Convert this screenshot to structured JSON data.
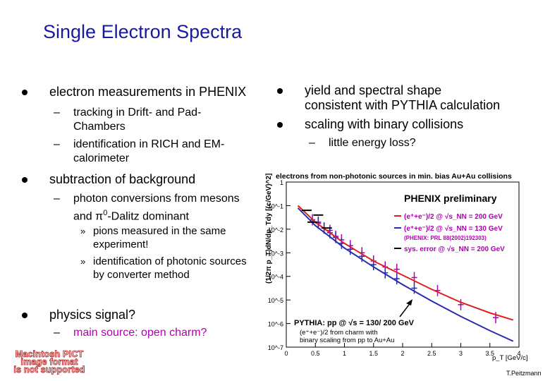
{
  "slide": {
    "title": "Single Electron Spectra",
    "credit": "T.Peitzmann"
  },
  "left": {
    "b1": "electron measurements in PHENIX",
    "b1_sub1_l1": "tracking in Drift- and Pad-",
    "b1_sub1_l2": "Chambers",
    "b1_sub2_l1": "identification in RICH and EM-",
    "b1_sub2_l2": "calorimeter",
    "b2": "subtraction of background",
    "b2_sub1_l1": "photon conversions from mesons",
    "b2_sub1_l2a": "and ",
    "b2_sub1_pi": "π",
    "b2_sub1_sup": "0",
    "b2_sub1_l2b": "-Dalitz dominant",
    "b2_s1_l1": "pions measured in the same",
    "b2_s1_l2": "experiment!",
    "b2_s2_l1": "identification of photonic sources",
    "b2_s2_l2": "by converter method",
    "b3": "physics signal?",
    "b3_sub1": "main source: open charm?",
    "dash": "–",
    "chev": "»"
  },
  "right": {
    "b1_l1": "yield and spectral shape",
    "b1_l2": "consistent with PYTHIA calculation",
    "b2": "scaling with binary collisions",
    "b2_sub": "little energy loss?",
    "dash": "–"
  },
  "pict_placeholder": {
    "l1": "Macintosh PICT",
    "l2": "image format",
    "l3": "is not supported"
  },
  "colors": {
    "title": "#1a1a9c",
    "magenta": "#b000b0",
    "red": "#e02020",
    "blue": "#2a2ab0"
  },
  "chart_data": {
    "type": "scatter",
    "title": "electrons from non-photonic sources in min. bias Au+Au collisions",
    "xlabel": "p_T [GeV/c]",
    "ylabel": "(1/2π p_T)dN/dp_Tdy [(c/GeV)^2]",
    "xlim": [
      0,
      4
    ],
    "ylim_log10": [
      -7,
      0
    ],
    "x_ticks": [
      "0",
      "0.5",
      "1",
      "1.5",
      "2",
      "2.5",
      "3",
      "3.5",
      "4"
    ],
    "y_ticks": [
      "10^-7",
      "10^-6",
      "10^-5",
      "10^-4",
      "10^-3",
      "10^-2",
      "10^-1",
      "1"
    ],
    "legend": {
      "header": "PHENIX preliminary",
      "e200": "(e⁺+e⁻)/2 @ √s_NN = 200 GeV",
      "e130": "(e⁺+e⁻)/2 @ √s_NN = 130 GeV",
      "ref": "(PHENIX: PRL 88(2002)192303)",
      "syserr": "sys. error @ √s_NN = 200 GeV"
    },
    "pythia": {
      "l1": "PYTHIA: pp @ √s = 130/ 200 GeV",
      "l2": "(e⁺+e⁻)/2 from charm with",
      "l3": "binary scaling from pp to Au+Au"
    },
    "series": [
      {
        "name": "(e⁺+e⁻)/2 @ √s_NN = 200 GeV",
        "x": [
          0.45,
          0.55,
          0.65,
          0.75,
          0.85,
          0.95,
          1.1,
          1.3,
          1.5,
          1.7,
          1.9,
          2.2,
          2.6,
          3.0,
          3.6
        ],
        "log10y": [
          -1.6,
          -1.75,
          -1.95,
          -2.05,
          -2.3,
          -2.45,
          -2.7,
          -3.0,
          -3.35,
          -3.6,
          -3.7,
          -4.05,
          -4.6,
          -5.2,
          -5.75
        ]
      },
      {
        "name": "(e⁺+e⁻)/2 @ √s_NN = 130 GeV",
        "x": [
          0.55,
          0.65,
          0.75,
          0.85,
          0.95,
          1.1,
          1.3,
          1.5,
          1.7,
          1.9,
          2.2
        ],
        "log10y": [
          -1.7,
          -1.95,
          -2.15,
          -2.35,
          -2.6,
          -2.85,
          -3.15,
          -3.5,
          -3.85,
          -4.1,
          -4.5
        ]
      },
      {
        "name": "PYTHIA 200 GeV",
        "x": [
          0.2,
          0.5,
          1.0,
          1.5,
          2.0,
          2.5,
          3.0,
          3.5,
          3.9
        ],
        "log10y": [
          -1.0,
          -1.7,
          -2.6,
          -3.35,
          -3.95,
          -4.55,
          -5.1,
          -5.55,
          -5.85
        ]
      },
      {
        "name": "PYTHIA 130 GeV",
        "x": [
          0.2,
          0.5,
          1.0,
          1.5,
          2.0,
          2.5,
          3.0,
          3.5,
          3.9
        ],
        "log10y": [
          -1.1,
          -1.85,
          -2.8,
          -3.6,
          -4.35,
          -5.05,
          -5.7,
          -6.3,
          -6.75
        ]
      }
    ],
    "syserr_marks": {
      "x": [
        0.35,
        0.45,
        0.55,
        0.7
      ],
      "log10y": [
        -1.2,
        -1.7,
        -1.4,
        -1.95
      ]
    }
  }
}
